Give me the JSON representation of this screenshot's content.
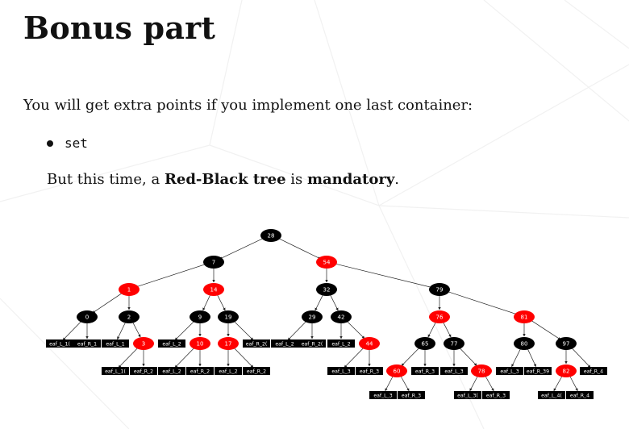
{
  "title": "Bonus part",
  "intro": "You will get extra points if you implement one last container:",
  "bullet_item": "set",
  "note": {
    "before": "But this time, a ",
    "bold1": "Red-Black tree",
    "middle": " is ",
    "bold2": "mandatory",
    "after": "."
  },
  "colors": {
    "red": "#ff0000",
    "black": "#000000",
    "text": "#111111"
  },
  "tree": {
    "nodes": [
      {
        "id": "n28",
        "label": "28",
        "color": "black"
      },
      {
        "id": "n7",
        "label": "7",
        "color": "black"
      },
      {
        "id": "n54",
        "label": "54",
        "color": "red"
      },
      {
        "id": "n1",
        "label": "1",
        "color": "red"
      },
      {
        "id": "n14",
        "label": "14",
        "color": "red"
      },
      {
        "id": "n32",
        "label": "32",
        "color": "black"
      },
      {
        "id": "n79",
        "label": "79",
        "color": "black"
      },
      {
        "id": "n0",
        "label": "0",
        "color": "black"
      },
      {
        "id": "n2",
        "label": "2",
        "color": "black"
      },
      {
        "id": "n9",
        "label": "9",
        "color": "black"
      },
      {
        "id": "n19",
        "label": "19",
        "color": "black"
      },
      {
        "id": "n29",
        "label": "29",
        "color": "black"
      },
      {
        "id": "n42",
        "label": "42",
        "color": "black"
      },
      {
        "id": "n76",
        "label": "76",
        "color": "red"
      },
      {
        "id": "n81",
        "label": "81",
        "color": "red"
      },
      {
        "id": "n3",
        "label": "3",
        "color": "red"
      },
      {
        "id": "n10",
        "label": "10",
        "color": "red"
      },
      {
        "id": "n17",
        "label": "17",
        "color": "red"
      },
      {
        "id": "n44",
        "label": "44",
        "color": "red"
      },
      {
        "id": "n65",
        "label": "65",
        "color": "black"
      },
      {
        "id": "n77",
        "label": "77",
        "color": "black"
      },
      {
        "id": "n80",
        "label": "80",
        "color": "black"
      },
      {
        "id": "n97",
        "label": "97",
        "color": "black"
      },
      {
        "id": "n60",
        "label": "60",
        "color": "red"
      },
      {
        "id": "n78",
        "label": "78",
        "color": "red"
      },
      {
        "id": "n82",
        "label": "82",
        "color": "red"
      }
    ],
    "leaves": [
      {
        "id": "l1",
        "label": "eaf_L_1("
      },
      {
        "id": "l2",
        "label": "eaf_R_1"
      },
      {
        "id": "l3",
        "label": "eaf_L_1"
      },
      {
        "id": "l4",
        "label": "eaf_L_1("
      },
      {
        "id": "l5",
        "label": "eaf_R_2"
      },
      {
        "id": "l6",
        "label": "eaf_L_2"
      },
      {
        "id": "l7",
        "label": "eaf_L_2"
      },
      {
        "id": "l8",
        "label": "eaf_R_2"
      },
      {
        "id": "l9",
        "label": "eaf_L_2"
      },
      {
        "id": "l10",
        "label": "eaf_R_2"
      },
      {
        "id": "l11",
        "label": "eaf_R_2("
      },
      {
        "id": "l12",
        "label": "eaf_L_2"
      },
      {
        "id": "l13",
        "label": "eaf_R_2("
      },
      {
        "id": "l14",
        "label": "eaf_L_2"
      },
      {
        "id": "l15",
        "label": "eaf_L_3"
      },
      {
        "id": "l16",
        "label": "eaf_R_3"
      },
      {
        "id": "l17",
        "label": "eaf_L_3"
      },
      {
        "id": "l18",
        "label": "eaf_R_3"
      },
      {
        "id": "l19",
        "label": "eaf_R_3"
      },
      {
        "id": "l20",
        "label": "eaf_L_3"
      },
      {
        "id": "l21",
        "label": "eaf_L_3("
      },
      {
        "id": "l22",
        "label": "eaf_R_3"
      },
      {
        "id": "l23",
        "label": "eaf_L_3"
      },
      {
        "id": "l24",
        "label": "eaf_R_39"
      },
      {
        "id": "l25",
        "label": "eaf_L_4("
      },
      {
        "id": "l26",
        "label": "eaf_R_4"
      },
      {
        "id": "l27",
        "label": "eaf_R_4"
      }
    ]
  }
}
